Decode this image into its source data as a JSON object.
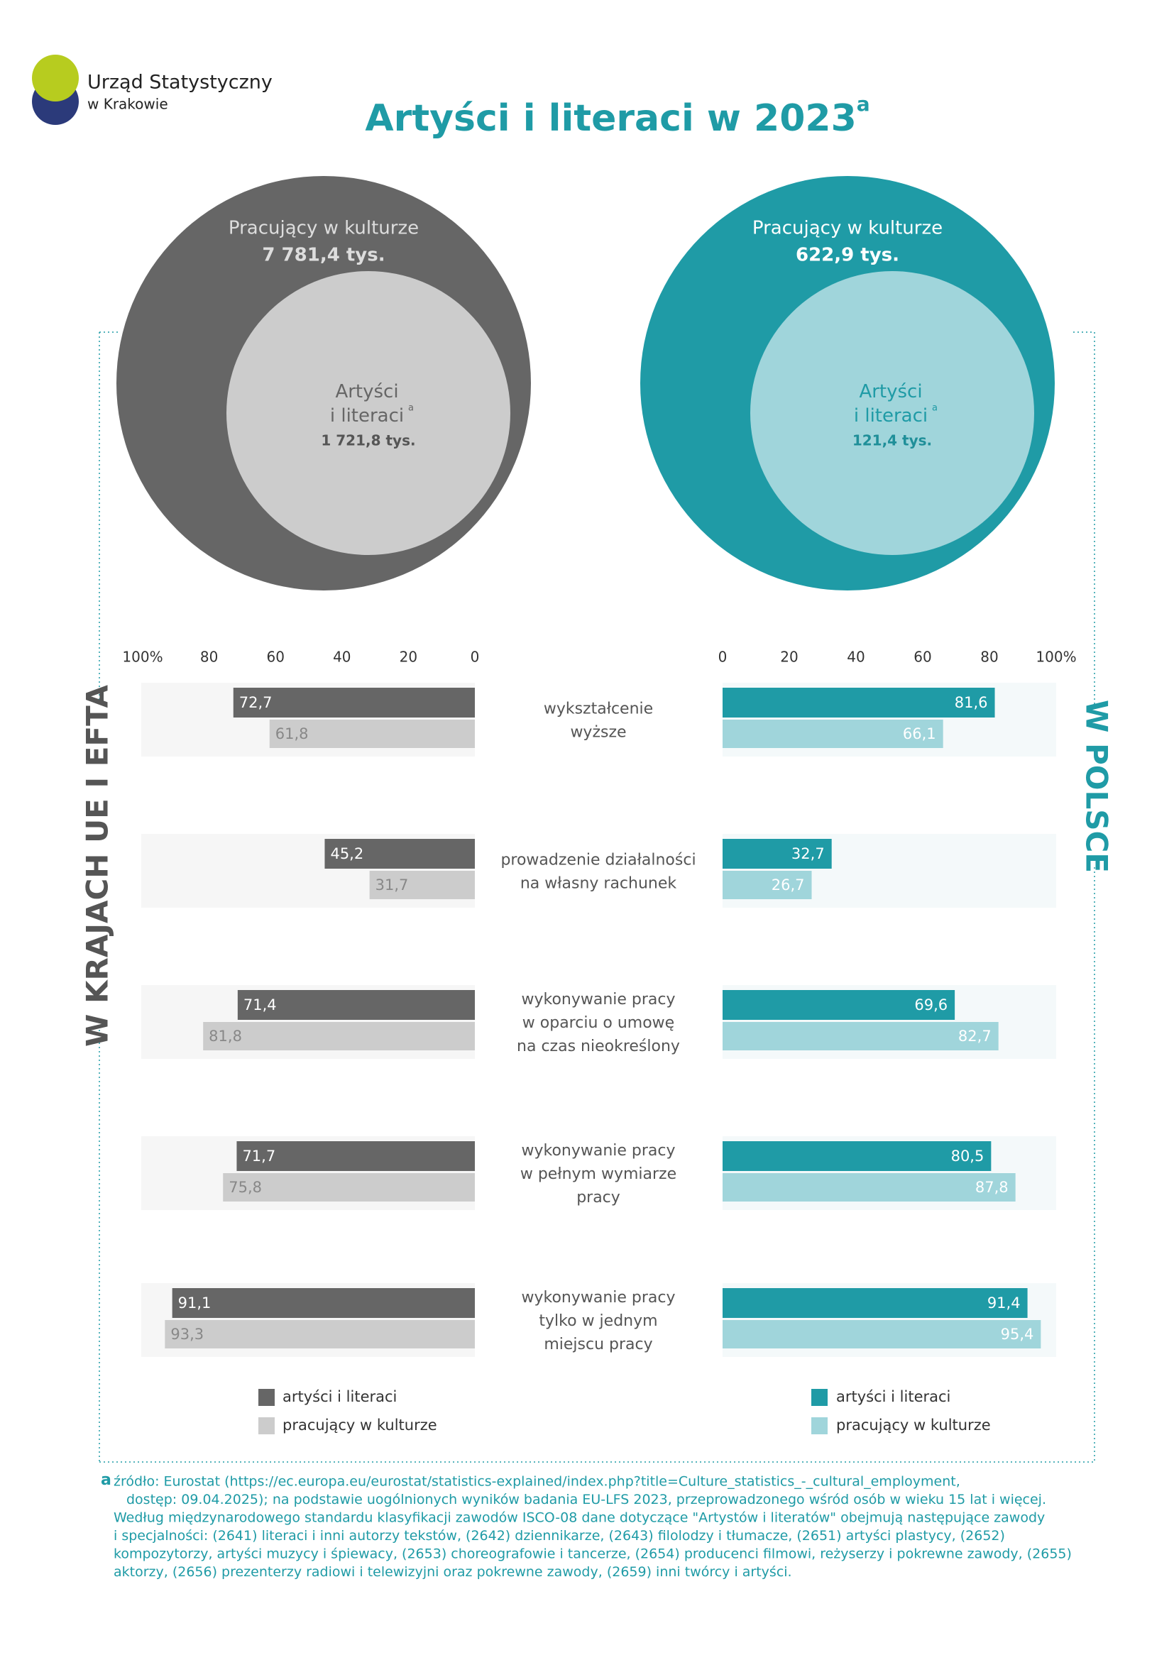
{
  "header": {
    "org_line1": "Urząd Statystyczny",
    "org_line2": "w Krakowie",
    "title": "Artyści i literaci w 2023",
    "title_note": "a"
  },
  "circles": [
    {
      "outer_label": "Pracujący w kulturze",
      "outer_value": "7 781,4 tys.",
      "inner_label": "Artyści\ni literaci",
      "inner_note": "a",
      "inner_value": "1 721,8 tys."
    },
    {
      "outer_label": "Pracujący w kulturze",
      "outer_value": "622,9 tys.",
      "inner_label": "Artyści\ni literaci",
      "inner_note": "a",
      "inner_value": "121,4 tys."
    }
  ],
  "chart_data": [
    {
      "type": "bar",
      "title": "W KRAJACH UE I EFTA",
      "categories": [
        "wykształcenie\nwyższe",
        "prowadzenie działalności\nna własny rachunek",
        "wykonywanie pracy\nw oparciu o umowę\nna czas nieokreślony",
        "wykonywanie pracy\nw pełnym wymiarze\npracy",
        "wykonywanie pracy\ntylko w jednym\nmiejscu pracy"
      ],
      "xlim": [
        100,
        0
      ],
      "xticks": [
        {
          "value": 100,
          "label": "100%"
        },
        80,
        60,
        40,
        20,
        0
      ],
      "series": [
        {
          "name": "artyści i literaci",
          "color": "#666666",
          "label_color": "#ffffff",
          "values": [
            72.7,
            45.2,
            71.4,
            71.7,
            91.1
          ],
          "value_labels": [
            "72,7",
            "45,2",
            "71,4",
            "71,7",
            "91,1"
          ]
        },
        {
          "name": "pracujący w kulturze",
          "color": "#cccccc",
          "label_color": "#888888",
          "values": [
            61.8,
            31.7,
            81.8,
            75.8,
            93.3
          ],
          "value_labels": [
            "61,8",
            "31,7",
            "81,8",
            "75,8",
            "93,3"
          ]
        }
      ]
    },
    {
      "type": "bar",
      "title": "W POLSCE",
      "xlim": [
        0,
        100
      ],
      "xticks": [
        0,
        20,
        40,
        60,
        80,
        {
          "value": 100,
          "label": "100%"
        }
      ],
      "series": [
        {
          "name": "artyści i literaci",
          "color": "#1f9ba6",
          "label_color": "#ffffff",
          "values": [
            81.6,
            32.7,
            69.6,
            80.5,
            91.4
          ],
          "value_labels": [
            "81,6",
            "32,7",
            "69,6",
            "80,5",
            "91,4"
          ]
        },
        {
          "name": "pracujący w kulturze",
          "color": "#a0d5db",
          "label_color": "#ffffff",
          "values": [
            66.1,
            26.7,
            82.7,
            87.8,
            95.4
          ],
          "value_labels": [
            "66,1",
            "26,7",
            "82,7",
            "87,8",
            "95,4"
          ]
        }
      ]
    }
  ],
  "footnote": {
    "marker": "a",
    "lines": [
      "źródło: Eurostat (https://ec.europa.eu/eurostat/statistics-explained/index.php?title=Culture_statistics_-_cultural_employment,",
      "dostęp: 09.04.2025); na podstawie uogólnionych wyników badania EU-LFS 2023, przeprowadzonego wśród osób w wieku 15 lat i więcej.",
      "Według międzynarodowego standardu klasyfikacji zawodów ISCO-08 dane dotyczące \"Artystów i literatów\" obejmują następujące zawody",
      "i specjalności: (2641) literaci i inni autorzy tekstów, (2642) dziennikarze, (2643) filolodzy i tłumacze, (2651) artyści plastycy, (2652)",
      "kompozytorzy, artyści muzycy i śpiewacy, (2653) choreografowie i tancerze, (2654) producenci filmowi, reżyserzy i pokrewne zawody, (2655)",
      "aktorzy, (2656) prezenterzy radiowi i telewizyjni oraz pokrewne zawody, (2659) inni twórcy i artyści."
    ]
  }
}
